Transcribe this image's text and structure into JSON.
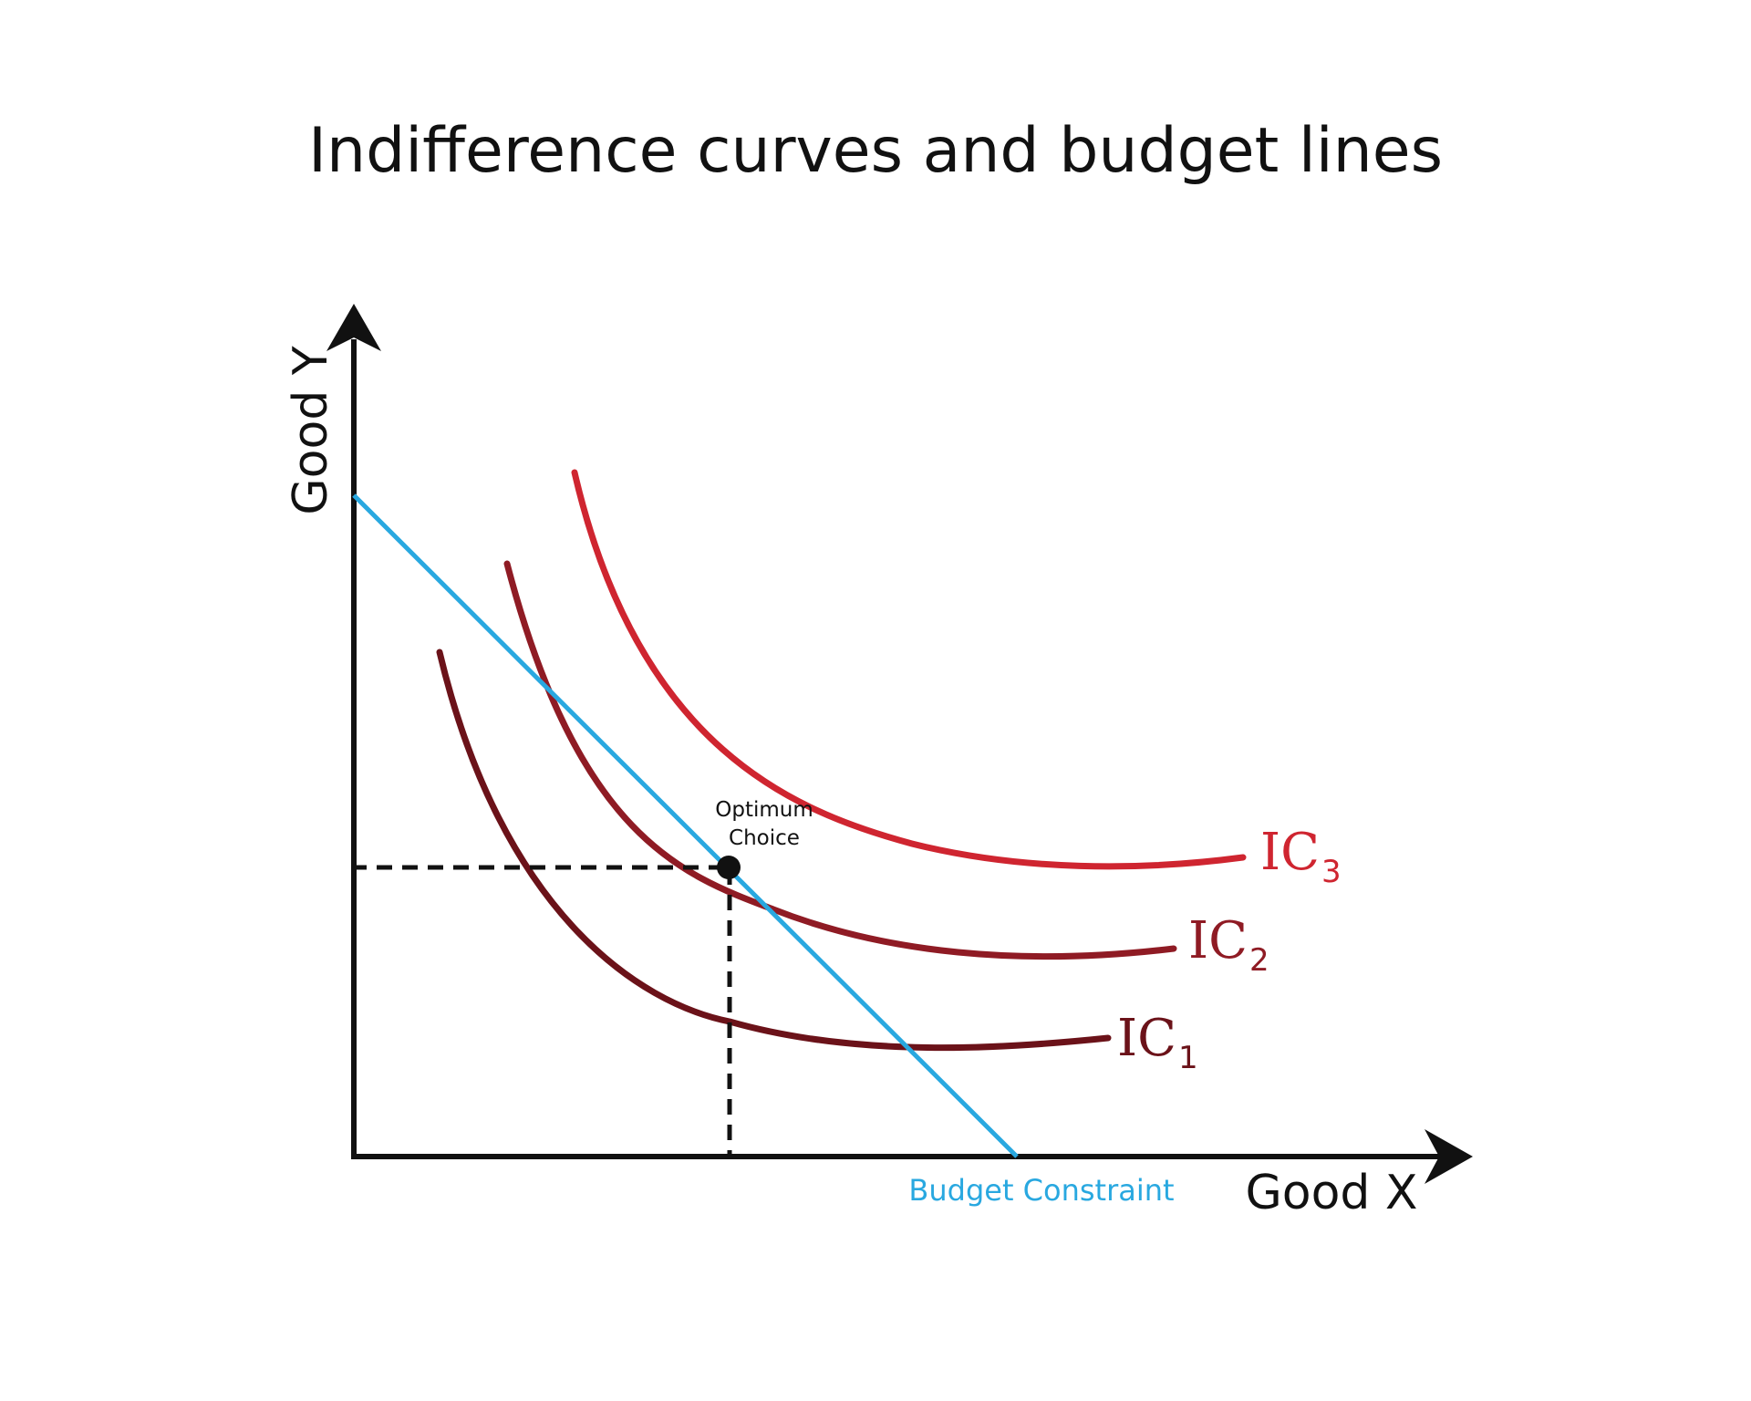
{
  "title": "Indifference curves and budget lines",
  "axes": {
    "x_label": "Good X",
    "y_label": "Good Y"
  },
  "budget_line": {
    "label": "Budget Constraint",
    "color": "#29a8e0"
  },
  "optimum": {
    "label_line1": "Optimum",
    "label_line2": "Choice"
  },
  "curves": [
    {
      "label": "IC",
      "subscript": "1",
      "color": "#6b1219"
    },
    {
      "label": "IC",
      "subscript": "2",
      "color": "#8f1b24"
    },
    {
      "label": "IC",
      "subscript": "3",
      "color": "#cf2530"
    }
  ]
}
